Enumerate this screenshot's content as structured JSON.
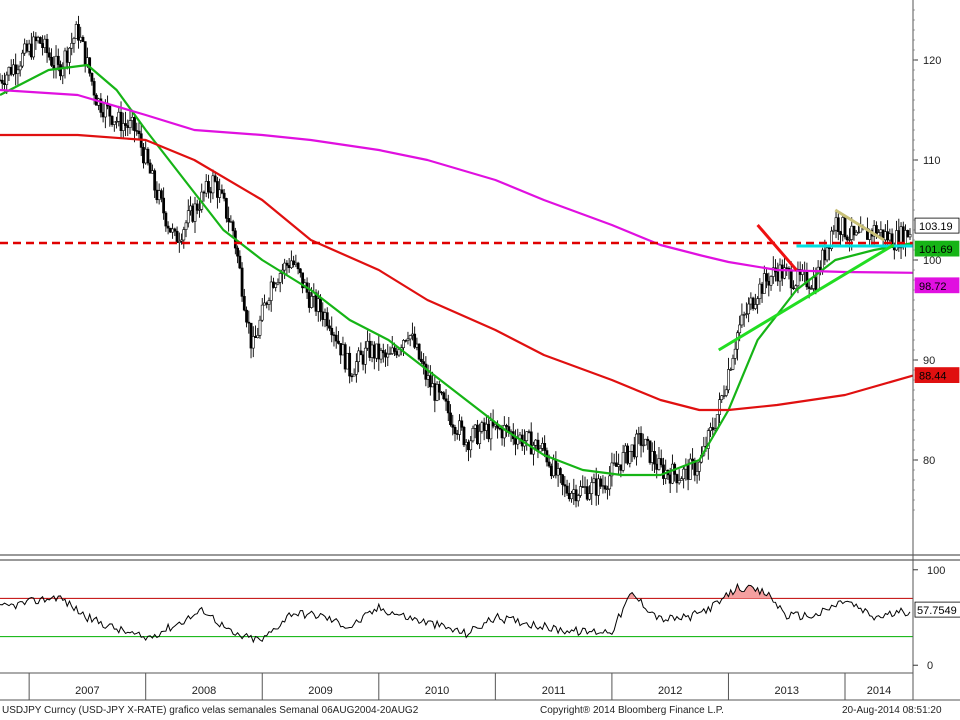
{
  "footer": {
    "left": "USDJPY Curncy (USD-JPY X-RATE) grafico velas semanales  Semanal 06AUG2004-20AUG2",
    "center": "Copyright® 2014 Bloomberg Finance L.P.",
    "right": "20-Aug-2014 08:51:20"
  },
  "colors": {
    "price": "#000000",
    "ma_green": "#16b416",
    "ma_red": "#e01010",
    "ma_magenta": "#e010e0",
    "support_dashed": "#e00000",
    "cyan_line": "#00e0e0",
    "trend_green": "#22dd22",
    "trend_red": "#ee1111",
    "trend_tan": "#c8c078",
    "rsi_upper": "#c00000",
    "rsi_lower": "#00b000",
    "rsi_fill": "#f4a0a0"
  },
  "chart_data": [
    {
      "type": "line",
      "title": "",
      "xlabel": "",
      "ylabel": "",
      "x_tick_labels": [
        "2007",
        "2008",
        "2009",
        "2010",
        "2011",
        "2012",
        "2013",
        "2014"
      ],
      "y_tick_labels": [
        "80",
        "90",
        "100",
        "110",
        "120"
      ],
      "ylim": [
        71,
        126
      ],
      "x_range": [
        "2006-10",
        "2014-08"
      ],
      "grid": false,
      "price_series": {
        "name": "USDJPY",
        "x": [
          "2006-10",
          "2006-12",
          "2007-02",
          "2007-04",
          "2007-06",
          "2007-08",
          "2007-10",
          "2007-12",
          "2008-02",
          "2008-04",
          "2008-06",
          "2008-08",
          "2008-10",
          "2008-12",
          "2009-02",
          "2009-04",
          "2009-06",
          "2009-08",
          "2009-10",
          "2009-12",
          "2010-02",
          "2010-04",
          "2010-06",
          "2010-08",
          "2010-10",
          "2010-12",
          "2011-02",
          "2011-04",
          "2011-06",
          "2011-08",
          "2011-10",
          "2011-12",
          "2012-02",
          "2012-04",
          "2012-06",
          "2012-08",
          "2012-10",
          "2012-12",
          "2013-02",
          "2013-04",
          "2013-06",
          "2013-08",
          "2013-10",
          "2013-12",
          "2014-02",
          "2014-04",
          "2014-06",
          "2014-08"
        ],
        "values": [
          118,
          120,
          122,
          119,
          123,
          116,
          114,
          113,
          107,
          102,
          105,
          108,
          103,
          91,
          98,
          100,
          96,
          94,
          89,
          91,
          90,
          93,
          88,
          85,
          82,
          83,
          83,
          82,
          81,
          77,
          77,
          77.5,
          80,
          82,
          79,
          78.5,
          79.5,
          85,
          93,
          97,
          99,
          98,
          98,
          104,
          102,
          103,
          102,
          103
        ]
      },
      "moving_averages": [
        {
          "role": "green",
          "x": [
            "2006-10",
            "2007-03",
            "2007-07",
            "2007-10",
            "2008-01",
            "2008-05",
            "2008-09",
            "2009-01",
            "2009-06",
            "2009-10",
            "2010-02",
            "2010-06",
            "2010-10",
            "2011-02",
            "2011-06",
            "2011-10",
            "2012-02",
            "2012-06",
            "2012-10",
            "2013-01",
            "2013-04",
            "2013-08",
            "2013-12",
            "2014-04",
            "2014-08"
          ],
          "values": [
            116.5,
            119,
            119.5,
            117,
            113,
            108,
            103,
            100,
            97,
            94,
            92,
            89,
            86,
            83,
            80.5,
            79,
            78.5,
            78.5,
            80,
            85,
            92,
            97,
            100,
            101,
            101.7
          ]
        },
        {
          "role": "red",
          "x": [
            "2006-10",
            "2007-06",
            "2008-01",
            "2008-06",
            "2009-01",
            "2009-06",
            "2010-01",
            "2010-06",
            "2011-01",
            "2011-06",
            "2012-01",
            "2012-06",
            "2012-10",
            "2013-01",
            "2013-06",
            "2014-01",
            "2014-08"
          ],
          "values": [
            112.5,
            112.5,
            112,
            110,
            106,
            102,
            99,
            96,
            93,
            90.5,
            88,
            86,
            85,
            85,
            85.5,
            86.5,
            88.44
          ]
        },
        {
          "role": "magenta",
          "x": [
            "2006-10",
            "2007-06",
            "2008-01",
            "2008-06",
            "2009-01",
            "2009-06",
            "2010-01",
            "2010-06",
            "2011-01",
            "2011-06",
            "2012-01",
            "2012-06",
            "2012-10",
            "2013-01",
            "2013-06",
            "2014-01",
            "2014-08"
          ],
          "values": [
            117,
            116.5,
            114.5,
            113,
            112.5,
            112,
            111,
            110,
            108,
            106,
            103.5,
            101.5,
            100.5,
            99.8,
            99,
            98.8,
            98.72
          ]
        }
      ],
      "horizontal_levels": [
        {
          "role": "support_dashed",
          "value": 101.7,
          "x_start": "2006-10",
          "x_end": "2014-09"
        },
        {
          "role": "cyan",
          "value": 101.4,
          "x_start": "2013-08",
          "x_end": "2014-09"
        }
      ],
      "trend_lines": [
        {
          "role": "trend_green",
          "x": [
            "2012-12",
            "2014-06"
          ],
          "values": [
            91,
            101.5
          ]
        },
        {
          "role": "trend_red",
          "x": [
            "2013-04",
            "2013-08"
          ],
          "values": [
            103.5,
            99
          ]
        },
        {
          "role": "trend_tan",
          "x": [
            "2013-12",
            "2014-05"
          ],
          "values": [
            105,
            102
          ]
        }
      ],
      "price_labels": [
        {
          "text": "103.19",
          "value": 103.19,
          "bg": "#ffffff",
          "fg": "#000000"
        },
        {
          "text": "101.69",
          "value": 101.69,
          "bg": "#16b416",
          "fg": "#000000"
        },
        {
          "text": "98.72",
          "value": 98.72,
          "bg": "#e010e0",
          "fg": "#000000"
        },
        {
          "text": "88.44",
          "value": 88.44,
          "bg": "#e01010",
          "fg": "#000000"
        }
      ]
    },
    {
      "type": "line",
      "title": "",
      "y_tick_labels": [
        "100",
        "0"
      ],
      "ylim": [
        -5,
        105
      ],
      "upper_level": 70,
      "lower_level": 30,
      "value_label": "57.7549",
      "rsi_series": {
        "name": "",
        "x": [
          "2006-10",
          "2007-01",
          "2007-04",
          "2007-07",
          "2007-10",
          "2008-01",
          "2008-04",
          "2008-07",
          "2008-10",
          "2009-01",
          "2009-04",
          "2009-07",
          "2009-10",
          "2010-01",
          "2010-04",
          "2010-07",
          "2010-10",
          "2011-01",
          "2011-04",
          "2011-07",
          "2011-10",
          "2012-01",
          "2012-03",
          "2012-06",
          "2012-09",
          "2012-12",
          "2013-02",
          "2013-05",
          "2013-07",
          "2013-10",
          "2014-01",
          "2014-04",
          "2014-08"
        ],
        "values": [
          60,
          66,
          72,
          50,
          38,
          28,
          42,
          58,
          32,
          26,
          55,
          52,
          40,
          60,
          50,
          42,
          33,
          50,
          45,
          38,
          35,
          36,
          75,
          48,
          50,
          65,
          82,
          75,
          52,
          52,
          68,
          50,
          57.75
        ]
      }
    }
  ]
}
